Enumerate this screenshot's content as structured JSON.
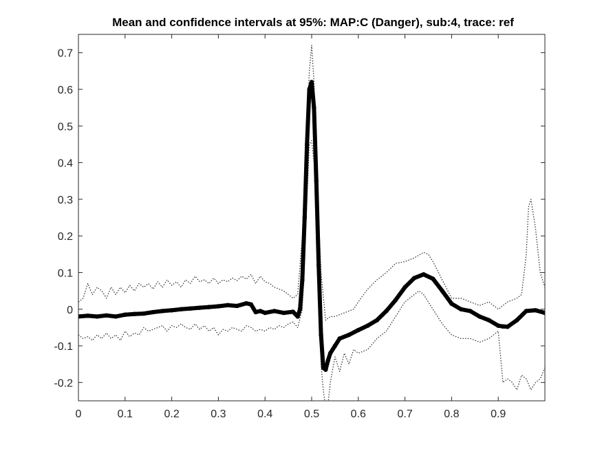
{
  "chart_data": {
    "type": "line",
    "title": "Mean and confidence intervals at 95%: MAP:C (Danger), sub:4, trace: ref",
    "xlabel": "",
    "ylabel": "",
    "xlim": [
      0,
      1
    ],
    "ylim": [
      -0.25,
      0.75
    ],
    "xticks": [
      0,
      0.1,
      0.2,
      0.3,
      0.4,
      0.5,
      0.6,
      0.7,
      0.8,
      0.9
    ],
    "xtick_labels": [
      "0",
      "0.1",
      "0.2",
      "0.3",
      "0.4",
      "0.5",
      "0.6",
      "0.7",
      "0.8",
      "0.9"
    ],
    "yticks": [
      -0.2,
      -0.1,
      0,
      0.1,
      0.2,
      0.3,
      0.4,
      0.5,
      0.6,
      0.7
    ],
    "ytick_labels": [
      "-0.2",
      "-0.1",
      "0",
      "0.1",
      "0.2",
      "0.3",
      "0.4",
      "0.5",
      "0.6",
      "0.7"
    ],
    "grid": false,
    "legend": "none",
    "colors": {
      "mean": "#000000",
      "ci": "#333333",
      "axes": "#262626"
    },
    "series": [
      {
        "role": "mean",
        "style": "thick-solid",
        "x": [
          0,
          0.02,
          0.04,
          0.06,
          0.08,
          0.1,
          0.12,
          0.14,
          0.16,
          0.18,
          0.2,
          0.22,
          0.24,
          0.26,
          0.28,
          0.3,
          0.32,
          0.34,
          0.36,
          0.37,
          0.38,
          0.39,
          0.4,
          0.42,
          0.44,
          0.46,
          0.47,
          0.475,
          0.48,
          0.485,
          0.49,
          0.495,
          0.5,
          0.505,
          0.51,
          0.515,
          0.52,
          0.525,
          0.53,
          0.535,
          0.54,
          0.55,
          0.56,
          0.58,
          0.6,
          0.62,
          0.64,
          0.66,
          0.68,
          0.7,
          0.72,
          0.74,
          0.76,
          0.78,
          0.8,
          0.82,
          0.84,
          0.86,
          0.88,
          0.9,
          0.91,
          0.92,
          0.94,
          0.96,
          0.98,
          1.0
        ],
        "values": [
          -0.02,
          -0.018,
          -0.02,
          -0.017,
          -0.02,
          -0.015,
          -0.013,
          -0.012,
          -0.008,
          -0.005,
          -0.003,
          0.0,
          0.002,
          0.004,
          0.006,
          0.008,
          0.011,
          0.009,
          0.016,
          0.013,
          -0.008,
          -0.005,
          -0.01,
          -0.005,
          -0.01,
          -0.007,
          -0.02,
          0.0,
          0.08,
          0.25,
          0.45,
          0.6,
          0.62,
          0.55,
          0.35,
          0.12,
          -0.07,
          -0.16,
          -0.165,
          -0.14,
          -0.12,
          -0.1,
          -0.08,
          -0.07,
          -0.057,
          -0.045,
          -0.03,
          -0.005,
          0.025,
          0.06,
          0.085,
          0.095,
          0.083,
          0.05,
          0.015,
          0.0,
          -0.005,
          -0.02,
          -0.03,
          -0.045,
          -0.047,
          -0.048,
          -0.03,
          -0.005,
          -0.003,
          -0.01
        ]
      },
      {
        "role": "ci-upper",
        "style": "dotted",
        "x": [
          0,
          0.01,
          0.02,
          0.03,
          0.04,
          0.05,
          0.06,
          0.07,
          0.08,
          0.09,
          0.1,
          0.11,
          0.12,
          0.13,
          0.14,
          0.15,
          0.16,
          0.17,
          0.18,
          0.19,
          0.2,
          0.21,
          0.22,
          0.23,
          0.24,
          0.25,
          0.26,
          0.27,
          0.28,
          0.29,
          0.3,
          0.31,
          0.32,
          0.33,
          0.34,
          0.35,
          0.36,
          0.37,
          0.38,
          0.39,
          0.4,
          0.41,
          0.42,
          0.43,
          0.44,
          0.45,
          0.46,
          0.47,
          0.48,
          0.49,
          0.495,
          0.5,
          0.505,
          0.51,
          0.52,
          0.53,
          0.54,
          0.55,
          0.56,
          0.57,
          0.58,
          0.59,
          0.6,
          0.62,
          0.64,
          0.66,
          0.68,
          0.7,
          0.72,
          0.74,
          0.75,
          0.76,
          0.78,
          0.8,
          0.82,
          0.84,
          0.86,
          0.88,
          0.9,
          0.92,
          0.94,
          0.95,
          0.96,
          0.965,
          0.97,
          0.98,
          0.99,
          1.0
        ],
        "values": [
          0.02,
          0.03,
          0.07,
          0.04,
          0.06,
          0.05,
          0.03,
          0.06,
          0.04,
          0.06,
          0.045,
          0.065,
          0.05,
          0.07,
          0.06,
          0.07,
          0.055,
          0.075,
          0.06,
          0.08,
          0.065,
          0.075,
          0.06,
          0.08,
          0.07,
          0.09,
          0.075,
          0.08,
          0.07,
          0.085,
          0.07,
          0.08,
          0.075,
          0.085,
          0.078,
          0.09,
          0.082,
          0.095,
          0.07,
          0.09,
          0.075,
          0.07,
          0.06,
          0.055,
          0.05,
          0.04,
          0.03,
          0.04,
          0.2,
          0.5,
          0.65,
          0.72,
          0.62,
          0.4,
          0.1,
          -0.03,
          -0.02,
          -0.02,
          -0.015,
          -0.01,
          -0.005,
          0.0,
          0.02,
          0.055,
          0.08,
          0.1,
          0.125,
          0.13,
          0.14,
          0.155,
          0.15,
          0.13,
          0.08,
          0.03,
          0.03,
          0.02,
          0.01,
          0.02,
          0.0,
          0.02,
          0.03,
          0.04,
          0.15,
          0.28,
          0.3,
          0.22,
          0.1,
          0.06
        ]
      },
      {
        "role": "ci-lower",
        "style": "dotted",
        "x": [
          0,
          0.01,
          0.02,
          0.03,
          0.04,
          0.05,
          0.06,
          0.07,
          0.08,
          0.09,
          0.1,
          0.11,
          0.12,
          0.13,
          0.14,
          0.15,
          0.16,
          0.17,
          0.18,
          0.19,
          0.2,
          0.21,
          0.22,
          0.23,
          0.24,
          0.25,
          0.26,
          0.27,
          0.28,
          0.29,
          0.3,
          0.31,
          0.32,
          0.33,
          0.34,
          0.35,
          0.36,
          0.37,
          0.38,
          0.39,
          0.4,
          0.41,
          0.42,
          0.43,
          0.44,
          0.45,
          0.46,
          0.47,
          0.48,
          0.49,
          0.495,
          0.5,
          0.505,
          0.51,
          0.52,
          0.525,
          0.53,
          0.535,
          0.54,
          0.55,
          0.56,
          0.57,
          0.58,
          0.59,
          0.6,
          0.62,
          0.64,
          0.66,
          0.68,
          0.7,
          0.72,
          0.73,
          0.74,
          0.76,
          0.78,
          0.8,
          0.82,
          0.84,
          0.86,
          0.88,
          0.9,
          0.91,
          0.92,
          0.93,
          0.94,
          0.95,
          0.96,
          0.97,
          0.98,
          0.99,
          1.0
        ],
        "values": [
          -0.07,
          -0.08,
          -0.075,
          -0.085,
          -0.07,
          -0.08,
          -0.065,
          -0.08,
          -0.07,
          -0.085,
          -0.06,
          -0.075,
          -0.065,
          -0.07,
          -0.05,
          -0.06,
          -0.055,
          -0.05,
          -0.045,
          -0.06,
          -0.045,
          -0.05,
          -0.04,
          -0.05,
          -0.055,
          -0.04,
          -0.055,
          -0.045,
          -0.06,
          -0.05,
          -0.07,
          -0.055,
          -0.06,
          -0.05,
          -0.055,
          -0.06,
          -0.045,
          -0.05,
          -0.06,
          -0.055,
          -0.06,
          -0.05,
          -0.055,
          -0.045,
          -0.05,
          -0.04,
          -0.035,
          -0.05,
          0.0,
          0.3,
          0.45,
          0.46,
          0.4,
          0.2,
          -0.15,
          -0.22,
          -0.27,
          -0.26,
          -0.2,
          -0.13,
          -0.17,
          -0.12,
          -0.15,
          -0.11,
          -0.12,
          -0.11,
          -0.08,
          -0.06,
          -0.02,
          0.02,
          0.04,
          0.05,
          0.04,
          0.0,
          -0.04,
          -0.07,
          -0.08,
          -0.08,
          -0.09,
          -0.08,
          -0.06,
          -0.2,
          -0.19,
          -0.2,
          -0.22,
          -0.18,
          -0.19,
          -0.22,
          -0.2,
          -0.19,
          -0.16
        ]
      }
    ]
  }
}
